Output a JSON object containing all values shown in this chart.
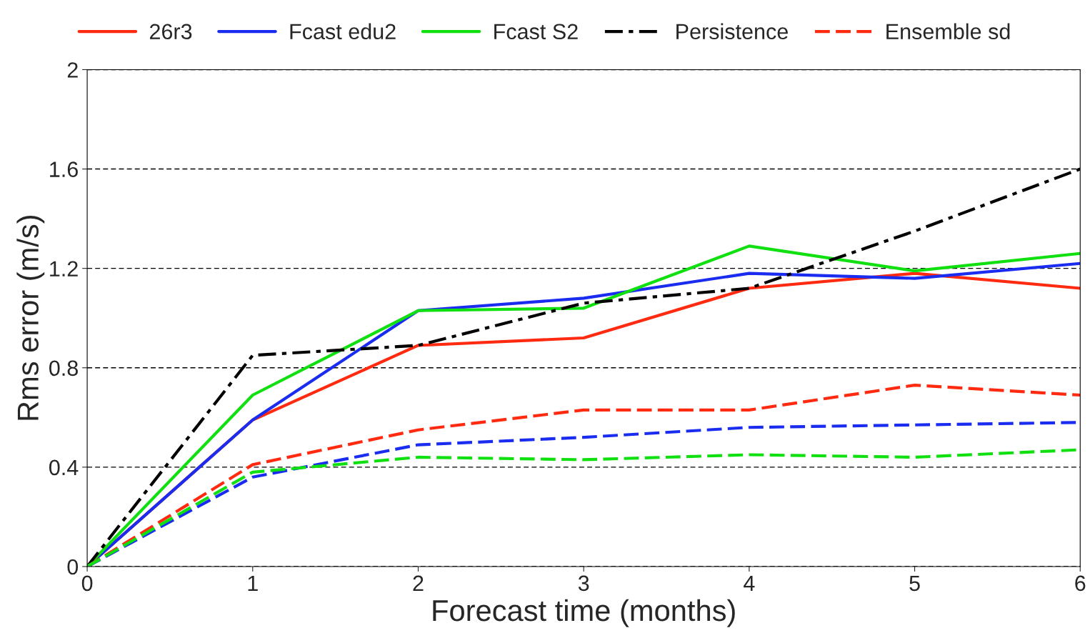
{
  "chart_data": {
    "type": "line",
    "xlabel": "Forecast time (months)",
    "ylabel": "Rms error (m/s)",
    "x": [
      0,
      1,
      2,
      3,
      4,
      5,
      6
    ],
    "series": [
      {
        "name": "26r3",
        "color": "#ff2a10",
        "line_style": "solid",
        "values": [
          0,
          0.59,
          0.89,
          0.92,
          1.12,
          1.18,
          1.12
        ]
      },
      {
        "name": "Fcast edu2",
        "color": "#1a2cf0",
        "line_style": "solid",
        "values": [
          0,
          0.59,
          1.03,
          1.08,
          1.18,
          1.16,
          1.22
        ]
      },
      {
        "name": "Fcast S2",
        "color": "#10e010",
        "line_style": "solid",
        "values": [
          0,
          0.69,
          1.03,
          1.04,
          1.29,
          1.19,
          1.26
        ]
      },
      {
        "name": "Persistence",
        "color": "#000000",
        "line_style": "dashdot",
        "values": [
          0,
          0.85,
          0.89,
          1.06,
          1.12,
          1.35,
          1.6
        ]
      },
      {
        "name": "Ensemble sd",
        "color": "#ff2a10",
        "line_style": "dashed",
        "values": [
          0,
          0.41,
          0.55,
          0.63,
          0.63,
          0.73,
          0.69
        ]
      },
      {
        "color": "#1a2cf0",
        "line_style": "dashed",
        "values": [
          0,
          0.36,
          0.49,
          0.52,
          0.56,
          0.57,
          0.58
        ]
      },
      {
        "color": "#10e010",
        "line_style": "dashed",
        "values": [
          0,
          0.38,
          0.44,
          0.43,
          0.45,
          0.44,
          0.47
        ]
      }
    ],
    "xlim": [
      0,
      6
    ],
    "xticks": [
      0,
      1,
      2,
      3,
      4,
      5,
      6
    ],
    "ylim": [
      0,
      2
    ],
    "yticks": [
      0,
      0.4,
      0.8,
      1.2,
      1.6,
      2
    ],
    "grid": "y",
    "legend": "top",
    "marker": "none"
  }
}
